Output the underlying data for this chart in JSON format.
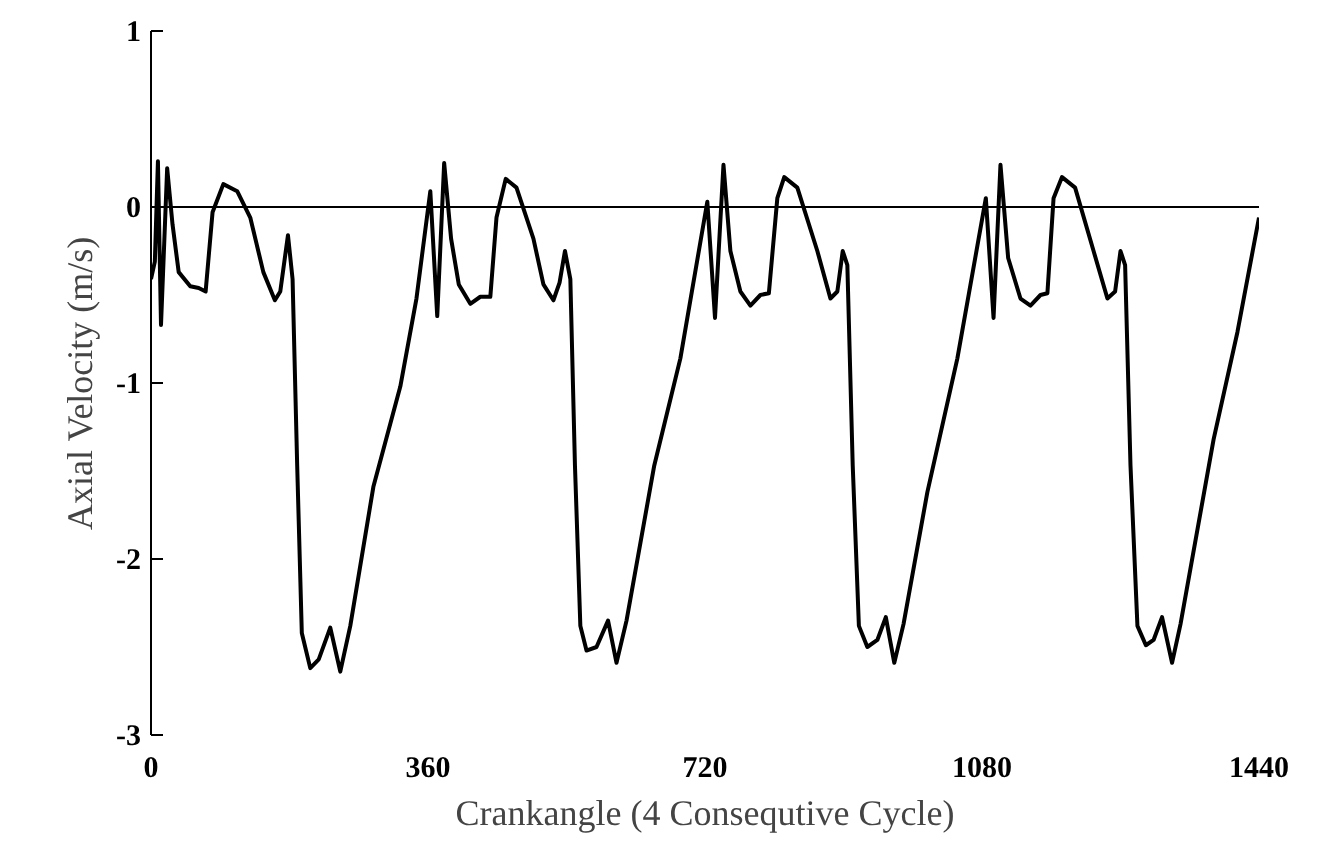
{
  "chart_data": {
    "type": "line",
    "xlabel": "Crankangle (4 Consequtive Cycle)",
    "ylabel": "Axial Velocity (m/s)",
    "xlim": [
      0,
      1440
    ],
    "xticks": [
      0,
      360,
      720,
      1080,
      1440
    ],
    "ylim": [
      -3,
      1
    ],
    "yticks": [
      -3,
      -2,
      -1,
      0,
      1
    ],
    "grid": false,
    "marker": "none",
    "line_style": "solid",
    "ref_lines": [
      {
        "axis": "y",
        "value": 0,
        "color": "#000000"
      }
    ],
    "series": [
      {
        "color": "#000000",
        "x": [
          0,
          5,
          9,
          13,
          21,
          28,
          36,
          51,
          62,
          71,
          80,
          94,
          112,
          129,
          146,
          161,
          168,
          178,
          184,
          190,
          196,
          207,
          218,
          233,
          246,
          259,
          289,
          324,
          345,
          363,
          372,
          381,
          390,
          400,
          415,
          428,
          441,
          449,
          461,
          475,
          497,
          510,
          523,
          531,
          538,
          545,
          551,
          558,
          566,
          579,
          594,
          605,
          618,
          654,
          688,
          723,
          733,
          744,
          753,
          766,
          779,
          792,
          803,
          814,
          823,
          840,
          866,
          883,
          892,
          899,
          905,
          912,
          920,
          931,
          944,
          955,
          966,
          978,
          1009,
          1048,
          1085,
          1095,
          1104,
          1114,
          1130,
          1143,
          1156,
          1165,
          1173,
          1184,
          1201,
          1225,
          1243,
          1253,
          1260,
          1266,
          1273,
          1282,
          1293,
          1303,
          1314,
          1327,
          1338,
          1381,
          1412,
          1440
        ],
        "values": [
          -0.41,
          -0.31,
          0.26,
          -0.67,
          0.22,
          -0.1,
          -0.37,
          -0.45,
          -0.46,
          -0.48,
          -0.03,
          0.13,
          0.09,
          -0.06,
          -0.37,
          -0.53,
          -0.48,
          -0.16,
          -0.41,
          -1.47,
          -2.42,
          -2.62,
          -2.57,
          -2.39,
          -2.64,
          -2.38,
          -1.59,
          -1.02,
          -0.52,
          0.09,
          -0.62,
          0.25,
          -0.18,
          -0.44,
          -0.55,
          -0.51,
          -0.51,
          -0.06,
          0.16,
          0.11,
          -0.18,
          -0.44,
          -0.53,
          -0.43,
          -0.25,
          -0.41,
          -1.47,
          -2.38,
          -2.52,
          -2.5,
          -2.35,
          -2.59,
          -2.35,
          -1.47,
          -0.86,
          0.03,
          -0.63,
          0.24,
          -0.25,
          -0.48,
          -0.56,
          -0.5,
          -0.49,
          0.05,
          0.17,
          0.11,
          -0.25,
          -0.52,
          -0.48,
          -0.25,
          -0.33,
          -1.47,
          -2.38,
          -2.5,
          -2.46,
          -2.33,
          -2.59,
          -2.37,
          -1.62,
          -0.86,
          0.05,
          -0.63,
          0.24,
          -0.29,
          -0.52,
          -0.56,
          -0.5,
          -0.49,
          0.05,
          0.17,
          0.11,
          -0.25,
          -0.52,
          -0.48,
          -0.25,
          -0.33,
          -1.47,
          -2.38,
          -2.49,
          -2.46,
          -2.33,
          -2.59,
          -2.37,
          -1.32,
          -0.71,
          -0.06
        ]
      }
    ]
  }
}
